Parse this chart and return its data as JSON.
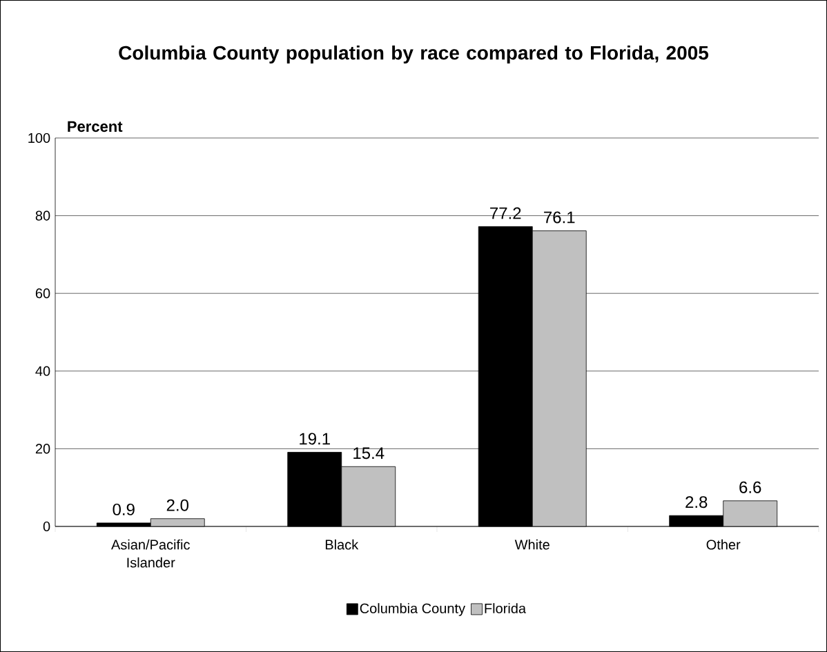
{
  "chart_data": {
    "type": "bar",
    "title": "Columbia County population by race compared to Florida, 2005",
    "ylabel": "Percent",
    "categories": [
      "Asian/Pacific Islander",
      "Black",
      "White",
      "Other"
    ],
    "series": [
      {
        "name": "Columbia County",
        "color": "#000000",
        "values": [
          0.9,
          19.1,
          77.2,
          2.8
        ],
        "value_labels": [
          "0.9",
          "19.1",
          "77.2",
          "2.8"
        ]
      },
      {
        "name": "Florida",
        "color": "#c0c0c0",
        "values": [
          2.0,
          15.4,
          76.1,
          6.6
        ],
        "value_labels": [
          "2.0",
          "15.4",
          "76.1",
          "6.6"
        ]
      }
    ],
    "ylim": [
      0,
      100
    ],
    "yticks": [
      0,
      20,
      40,
      60,
      80,
      100
    ],
    "grid": "y",
    "legend": "bottom"
  }
}
